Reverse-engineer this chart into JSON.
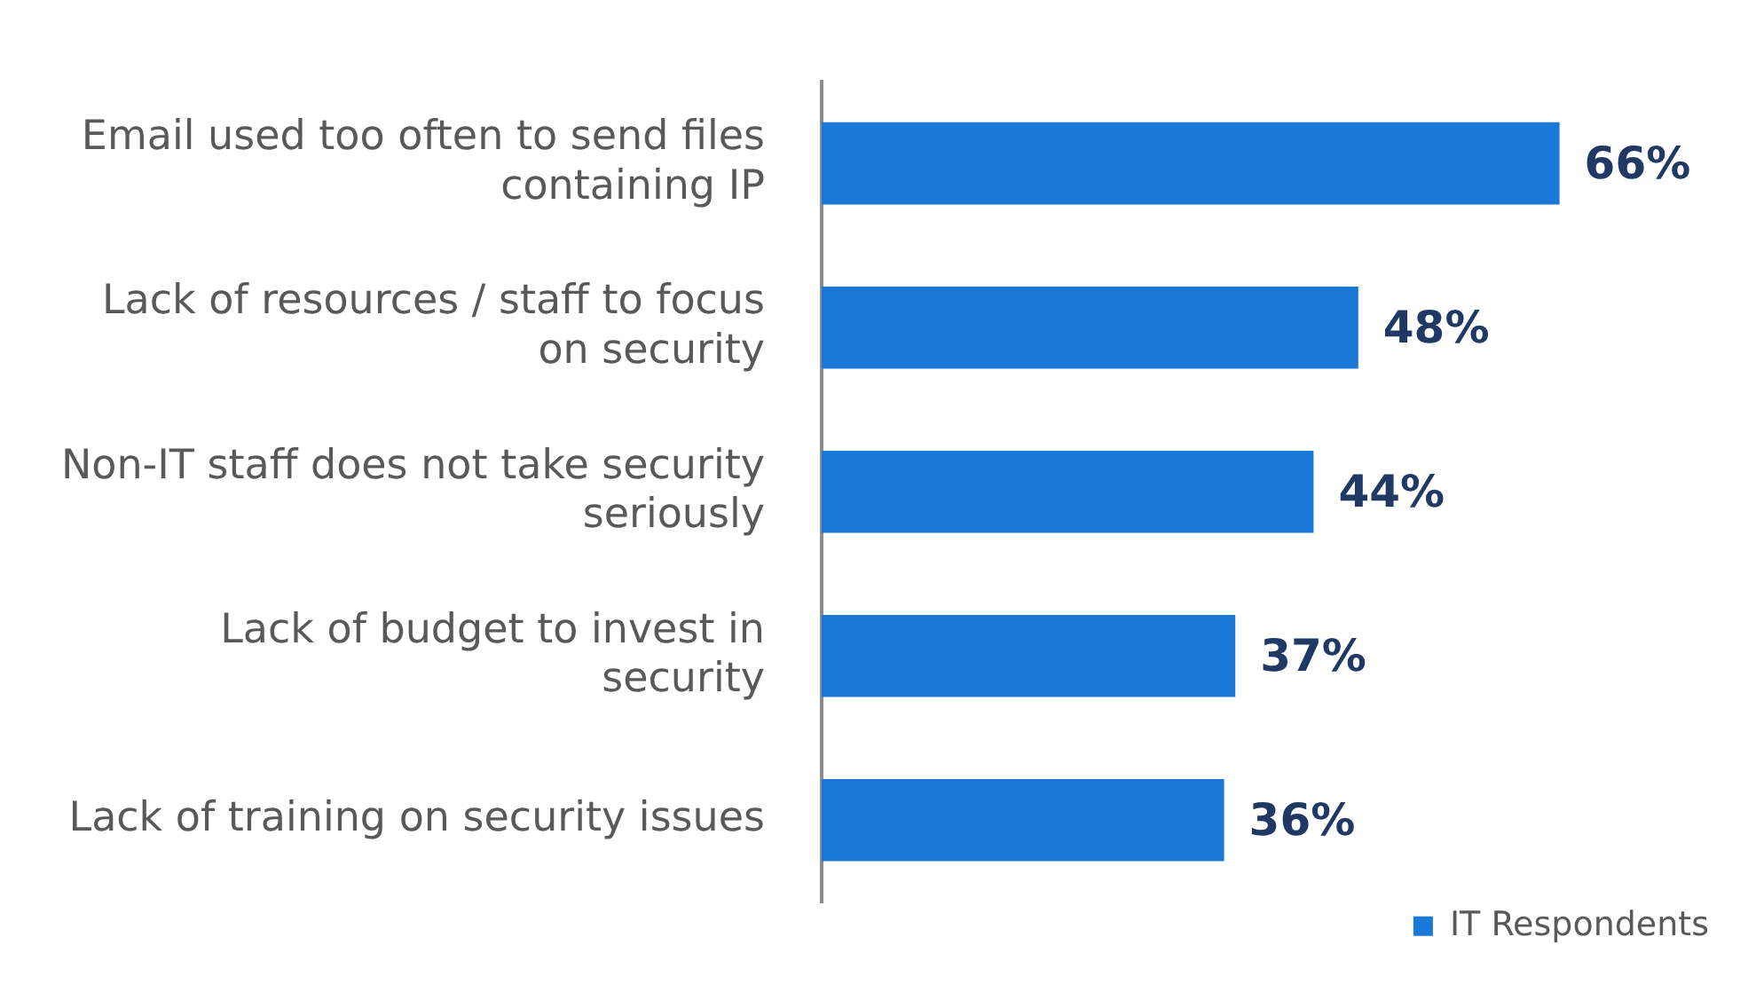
{
  "chart_data": {
    "type": "bar",
    "orientation": "horizontal",
    "categories": [
      "Email used too often to send files containing IP",
      "Lack of resources / staff to focus on security",
      "Non-IT staff does not take security seriously",
      "Lack of budget to invest in security",
      "Lack of training on security issues"
    ],
    "series": [
      {
        "name": "IT Respondents",
        "color": "#1a78d8",
        "values": [
          66,
          48,
          44,
          37,
          36
        ],
        "value_labels": [
          "66%",
          "48%",
          "44%",
          "37%",
          "36%"
        ]
      }
    ],
    "legend": "bottom right"
  }
}
